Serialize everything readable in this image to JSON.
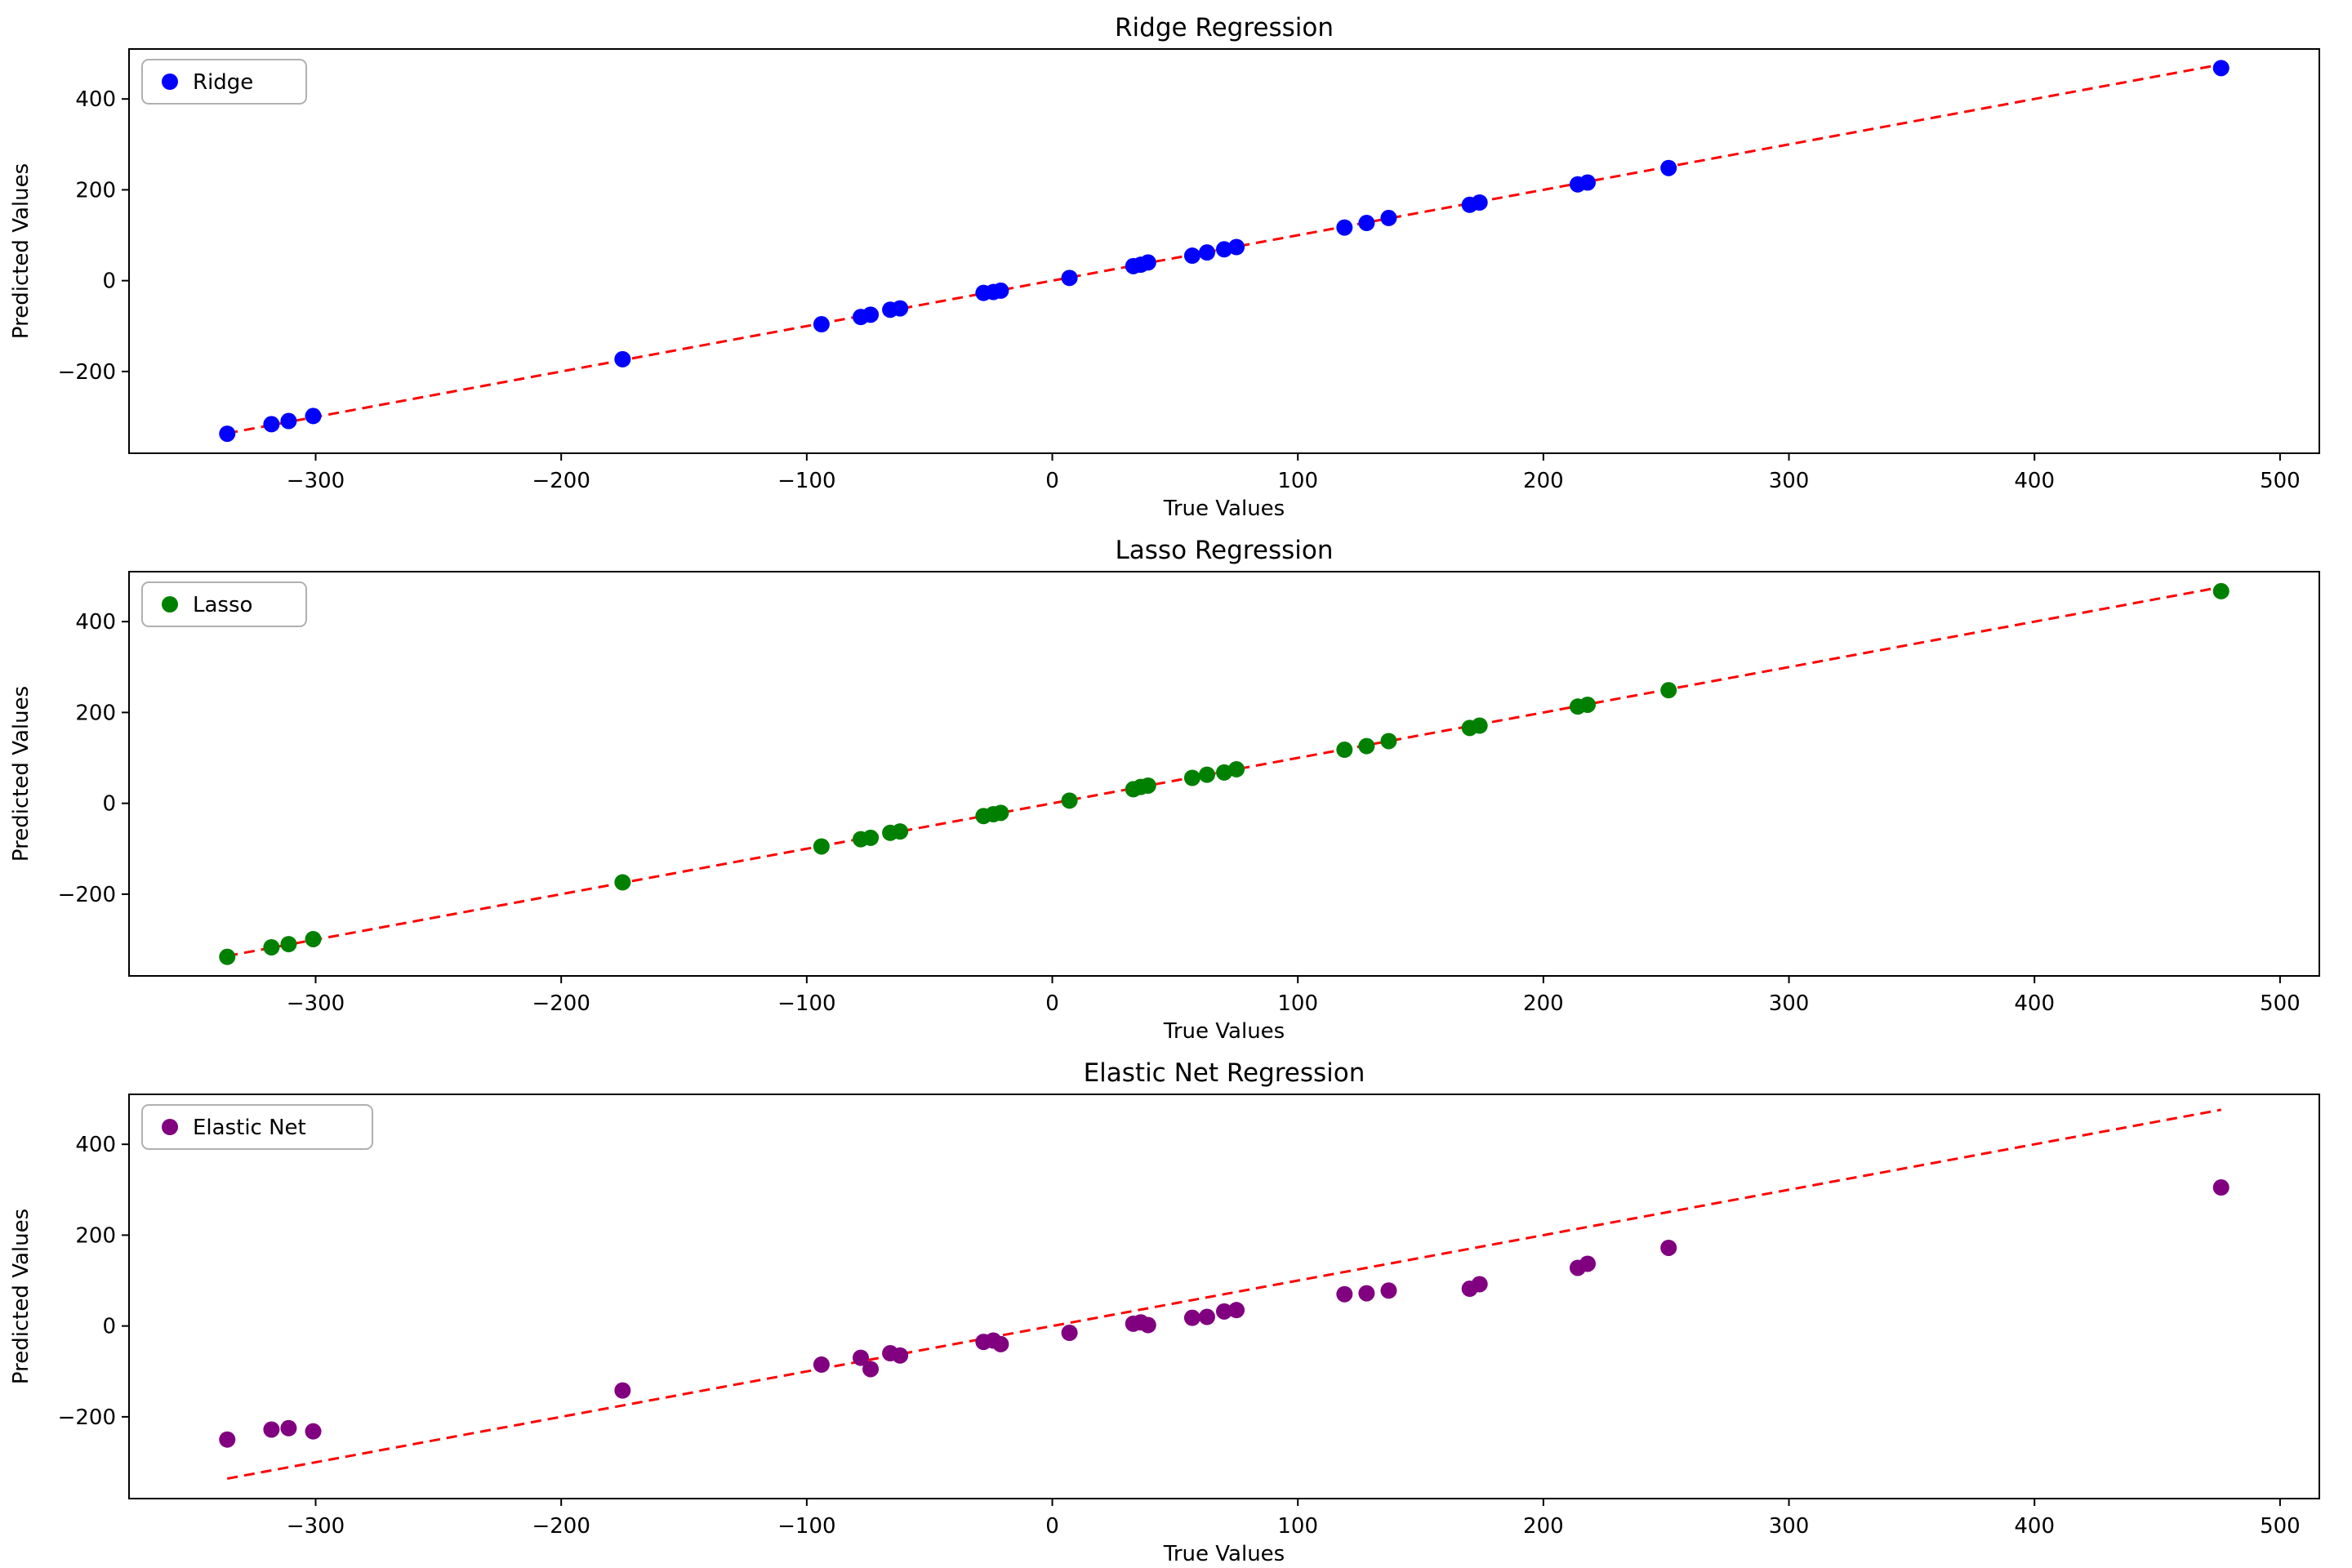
{
  "figure": {
    "background": "#ffffff"
  },
  "chart_data": [
    {
      "name": "ridge",
      "type": "scatter",
      "title": "Ridge Regression",
      "xlabel": "True Values",
      "ylabel": "Predicted Values",
      "legend_label": "Ridge",
      "legend_position": "upper-left",
      "marker_color": "#0000ff",
      "line_color": "#ff0000",
      "line_style": "dashed",
      "grid": false,
      "xlim": [
        -376,
        516
      ],
      "ylim": [
        -380,
        510
      ],
      "xticks": [
        -300,
        -200,
        -100,
        0,
        100,
        200,
        300,
        400,
        500
      ],
      "xtick_labels": [
        "−300",
        "−200",
        "−100",
        "0",
        "100",
        "200",
        "300",
        "400",
        "500"
      ],
      "yticks": [
        -200,
        0,
        200,
        400
      ],
      "ytick_labels": [
        "−200",
        "0",
        "200",
        "400"
      ],
      "identity_line": {
        "x": [
          -336,
          476
        ],
        "y": [
          -336,
          476
        ]
      },
      "x": [
        -336,
        -318,
        -311,
        -301,
        -175,
        -94,
        -78,
        -74,
        -66,
        -62,
        -28,
        -24,
        -21,
        7,
        33,
        36,
        39,
        57,
        63,
        70,
        75,
        119,
        128,
        137,
        170,
        174,
        214,
        218,
        251,
        476
      ],
      "y": [
        -337,
        -316,
        -309,
        -298,
        -173,
        -96,
        -80,
        -75,
        -64,
        -61,
        -27,
        -25,
        -22,
        6,
        32,
        35,
        40,
        55,
        62,
        69,
        74,
        117,
        127,
        138,
        167,
        172,
        212,
        216,
        248,
        468
      ]
    },
    {
      "name": "lasso",
      "type": "scatter",
      "title": "Lasso Regression",
      "xlabel": "True Values",
      "ylabel": "Predicted Values",
      "legend_label": "Lasso",
      "legend_position": "upper-left",
      "marker_color": "#008000",
      "line_color": "#ff0000",
      "line_style": "dashed",
      "grid": false,
      "xlim": [
        -376,
        516
      ],
      "ylim": [
        -380,
        510
      ],
      "xticks": [
        -300,
        -200,
        -100,
        0,
        100,
        200,
        300,
        400,
        500
      ],
      "xtick_labels": [
        "−300",
        "−200",
        "−100",
        "0",
        "100",
        "200",
        "300",
        "400",
        "500"
      ],
      "yticks": [
        -200,
        0,
        200,
        400
      ],
      "ytick_labels": [
        "−200",
        "0",
        "200",
        "400"
      ],
      "identity_line": {
        "x": [
          -336,
          476
        ],
        "y": [
          -336,
          476
        ]
      },
      "x": [
        -336,
        -318,
        -311,
        -301,
        -175,
        -94,
        -78,
        -74,
        -66,
        -62,
        -28,
        -24,
        -21,
        7,
        33,
        36,
        39,
        57,
        63,
        70,
        75,
        119,
        128,
        137,
        170,
        174,
        214,
        218,
        251,
        476
      ],
      "y": [
        -338,
        -317,
        -310,
        -299,
        -174,
        -95,
        -79,
        -76,
        -65,
        -62,
        -28,
        -24,
        -21,
        6,
        31,
        36,
        39,
        56,
        63,
        68,
        75,
        118,
        126,
        137,
        166,
        171,
        213,
        217,
        249,
        467
      ]
    },
    {
      "name": "elastic-net",
      "type": "scatter",
      "title": "Elastic Net Regression",
      "xlabel": "True Values",
      "ylabel": "Predicted Values",
      "legend_label": "Elastic Net",
      "legend_position": "upper-left",
      "marker_color": "#800080",
      "line_color": "#ff0000",
      "line_style": "dashed",
      "grid": false,
      "xlim": [
        -376,
        516
      ],
      "ylim": [
        -380,
        510
      ],
      "xticks": [
        -300,
        -200,
        -100,
        0,
        100,
        200,
        300,
        400,
        500
      ],
      "xtick_labels": [
        "−300",
        "−200",
        "−100",
        "0",
        "100",
        "200",
        "300",
        "400",
        "500"
      ],
      "yticks": [
        -200,
        0,
        200,
        400
      ],
      "ytick_labels": [
        "−200",
        "0",
        "200",
        "400"
      ],
      "identity_line": {
        "x": [
          -336,
          476
        ],
        "y": [
          -336,
          476
        ]
      },
      "x": [
        -336,
        -318,
        -311,
        -301,
        -175,
        -94,
        -78,
        -74,
        -66,
        -62,
        -28,
        -24,
        -21,
        7,
        33,
        36,
        39,
        57,
        63,
        70,
        75,
        119,
        128,
        137,
        170,
        174,
        214,
        218,
        251,
        476
      ],
      "y": [
        -250,
        -228,
        -225,
        -232,
        -142,
        -85,
        -70,
        -95,
        -60,
        -65,
        -35,
        -32,
        -40,
        -15,
        5,
        8,
        2,
        18,
        20,
        32,
        35,
        70,
        72,
        78,
        82,
        92,
        128,
        137,
        172,
        305
      ]
    }
  ]
}
